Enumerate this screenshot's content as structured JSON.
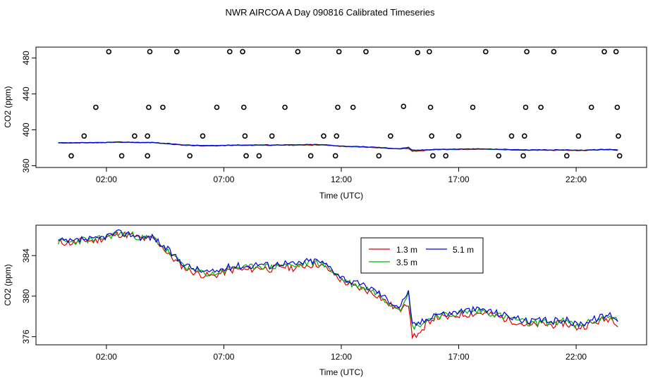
{
  "title": "NWR AIRCOA A  Day 090816  Calibrated Timeseries",
  "colors": {
    "c13": "#e00000",
    "c35": "#00b000",
    "c51": "#0000e0",
    "axis": "#000000"
  },
  "chart_data": [
    {
      "type": "scatter+line",
      "name": "overview",
      "ylabel": "CO2 (ppm)",
      "xlabel": "Time (UTC)",
      "xlim": [
        -1.0,
        25.0
      ],
      "ylim": [
        358,
        492
      ],
      "xticks": [
        2,
        7,
        12,
        17,
        22
      ],
      "xtick_labels": [
        "02:00",
        "07:00",
        "12:00",
        "17:00",
        "22:00"
      ],
      "yticks": [
        360,
        400,
        440,
        480
      ],
      "ytick_labels": [
        "360",
        "400",
        "440",
        "480"
      ],
      "points": [
        {
          "x": 0.5,
          "y": 371
        },
        {
          "x": 1.05,
          "y": 393
        },
        {
          "x": 1.55,
          "y": 425
        },
        {
          "x": 2.1,
          "y": 487
        },
        {
          "x": 2.65,
          "y": 371
        },
        {
          "x": 3.2,
          "y": 393
        },
        {
          "x": 3.75,
          "y": 371
        },
        {
          "x": 3.75,
          "y": 393
        },
        {
          "x": 3.8,
          "y": 425
        },
        {
          "x": 3.85,
          "y": 487
        },
        {
          "x": 4.4,
          "y": 425
        },
        {
          "x": 5.0,
          "y": 487
        },
        {
          "x": 5.55,
          "y": 371
        },
        {
          "x": 6.1,
          "y": 393
        },
        {
          "x": 6.7,
          "y": 425
        },
        {
          "x": 7.25,
          "y": 487
        },
        {
          "x": 7.8,
          "y": 487
        },
        {
          "x": 7.85,
          "y": 425
        },
        {
          "x": 7.9,
          "y": 393
        },
        {
          "x": 7.95,
          "y": 371
        },
        {
          "x": 8.5,
          "y": 371
        },
        {
          "x": 9.05,
          "y": 393
        },
        {
          "x": 9.6,
          "y": 425
        },
        {
          "x": 10.15,
          "y": 487
        },
        {
          "x": 10.7,
          "y": 371
        },
        {
          "x": 11.25,
          "y": 393
        },
        {
          "x": 11.75,
          "y": 371
        },
        {
          "x": 11.8,
          "y": 393
        },
        {
          "x": 11.85,
          "y": 425
        },
        {
          "x": 11.9,
          "y": 487
        },
        {
          "x": 12.5,
          "y": 425
        },
        {
          "x": 13.05,
          "y": 487
        },
        {
          "x": 13.6,
          "y": 371
        },
        {
          "x": 14.1,
          "y": 393
        },
        {
          "x": 14.65,
          "y": 426
        },
        {
          "x": 15.25,
          "y": 486
        },
        {
          "x": 15.75,
          "y": 487
        },
        {
          "x": 15.8,
          "y": 425
        },
        {
          "x": 15.85,
          "y": 393
        },
        {
          "x": 15.9,
          "y": 371
        },
        {
          "x": 16.45,
          "y": 371
        },
        {
          "x": 17.0,
          "y": 393
        },
        {
          "x": 17.6,
          "y": 425
        },
        {
          "x": 18.15,
          "y": 487
        },
        {
          "x": 18.7,
          "y": 371
        },
        {
          "x": 19.25,
          "y": 393
        },
        {
          "x": 19.75,
          "y": 371
        },
        {
          "x": 19.8,
          "y": 393
        },
        {
          "x": 19.85,
          "y": 425
        },
        {
          "x": 19.9,
          "y": 487
        },
        {
          "x": 20.5,
          "y": 425
        },
        {
          "x": 21.05,
          "y": 487
        },
        {
          "x": 21.6,
          "y": 371
        },
        {
          "x": 22.1,
          "y": 393
        },
        {
          "x": 22.65,
          "y": 425
        },
        {
          "x": 23.2,
          "y": 487
        },
        {
          "x": 23.7,
          "y": 487
        },
        {
          "x": 23.75,
          "y": 425
        },
        {
          "x": 23.8,
          "y": 393
        },
        {
          "x": 23.85,
          "y": 371
        }
      ]
    },
    {
      "type": "line",
      "name": "detail",
      "ylabel": "CO2 (ppm)",
      "xlabel": "Time (UTC)",
      "xlim": [
        -1.0,
        25.0
      ],
      "ylim": [
        375.2,
        387.0
      ],
      "xticks": [
        2,
        7,
        12,
        17,
        22
      ],
      "xtick_labels": [
        "02:00",
        "07:00",
        "12:00",
        "17:00",
        "22:00"
      ],
      "yticks": [
        376,
        380,
        384
      ],
      "ytick_labels": [
        "376",
        "380",
        "384"
      ],
      "legend": {
        "placement": "top-center",
        "entries": [
          "1.3 m",
          "5.1 m",
          "3.5 m"
        ]
      },
      "anchors": [
        [
          -0.05,
          385.4
        ],
        [
          0.6,
          385.3
        ],
        [
          1.0,
          385.6
        ],
        [
          1.5,
          385.5
        ],
        [
          2.0,
          385.9
        ],
        [
          2.5,
          386.2
        ],
        [
          3.0,
          386.1
        ],
        [
          3.6,
          385.7
        ],
        [
          4.0,
          385.8
        ],
        [
          4.5,
          384.7
        ],
        [
          5.0,
          383.6
        ],
        [
          5.5,
          382.8
        ],
        [
          6.0,
          382.4
        ],
        [
          6.5,
          382.2
        ],
        [
          7.0,
          382.6
        ],
        [
          7.5,
          382.9
        ],
        [
          8.0,
          382.8
        ],
        [
          8.5,
          383.1
        ],
        [
          9.0,
          382.9
        ],
        [
          9.5,
          383.2
        ],
        [
          10.0,
          383.0
        ],
        [
          10.5,
          383.3
        ],
        [
          11.0,
          383.4
        ],
        [
          11.5,
          382.8
        ],
        [
          12.0,
          381.8
        ],
        [
          12.5,
          381.2
        ],
        [
          13.0,
          380.9
        ],
        [
          13.5,
          380.4
        ],
        [
          14.0,
          379.5
        ],
        [
          14.5,
          378.8
        ],
        [
          14.85,
          380.5
        ],
        [
          15.0,
          377.0
        ],
        [
          15.5,
          377.4
        ],
        [
          16.0,
          378.2
        ],
        [
          16.5,
          378.1
        ],
        [
          17.0,
          378.4
        ],
        [
          17.5,
          378.5
        ],
        [
          18.0,
          378.6
        ],
        [
          18.5,
          378.3
        ],
        [
          19.0,
          378.0
        ],
        [
          19.5,
          377.7
        ],
        [
          20.0,
          377.3
        ],
        [
          20.5,
          377.5
        ],
        [
          21.0,
          377.4
        ],
        [
          21.5,
          377.6
        ],
        [
          22.0,
          377.1
        ],
        [
          22.5,
          377.4
        ],
        [
          23.0,
          377.8
        ],
        [
          23.5,
          378.1
        ],
        [
          23.85,
          377.4
        ]
      ],
      "series": [
        {
          "name": "1.3 m",
          "color_key": "c13",
          "offset": -0.25,
          "seed": 11
        },
        {
          "name": "3.5 m",
          "color_key": "c35",
          "offset": -0.05,
          "seed": 23
        },
        {
          "name": "5.1 m",
          "color_key": "c51",
          "offset": 0.12,
          "seed": 37
        }
      ]
    }
  ]
}
